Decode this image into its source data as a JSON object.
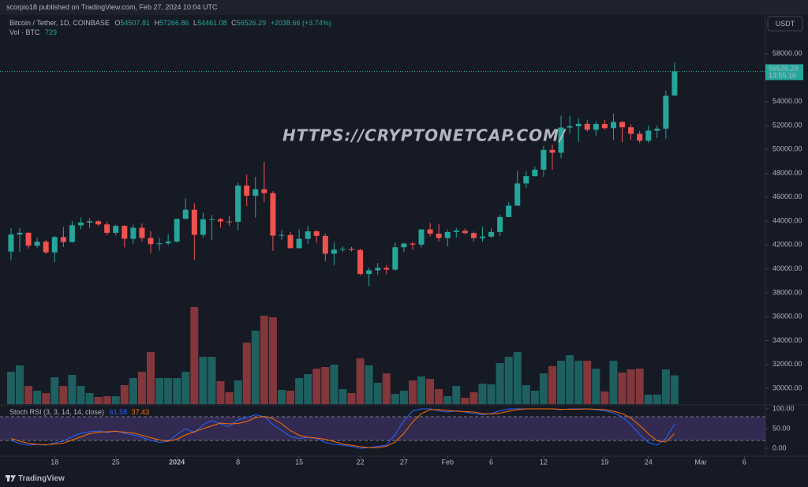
{
  "header": {
    "publisher": "scorpio18 published on TradingView.com, Feb 27, 2024 10:04 UTC"
  },
  "chart_data": {
    "type": "candlestick",
    "title": "Bitcoin / Tether, 1D, COINBASE",
    "ohlc_labels": [
      "O",
      "H",
      "L",
      "C"
    ],
    "change": "+2038.66 (+3.74%)",
    "currency": "USDT",
    "countdown": "13:55:16",
    "colors": {
      "up": "#26a69a",
      "down": "#ef5350"
    },
    "open": [
      41450,
      42880,
      43020,
      41940,
      42270,
      41380,
      42660,
      42250,
      43650,
      43880,
      43990,
      43720,
      43020,
      43600,
      42520,
      43440,
      42580,
      42070,
      42140,
      42280,
      44180,
      44950,
      42850,
      44150,
      44160,
      43970,
      43940,
      46970,
      46120,
      46660,
      46340,
      42780,
      42840,
      41730,
      42510,
      43140,
      42760,
      41270,
      41620,
      41660,
      41580,
      39570,
      39880,
      40080,
      39940,
      41810,
      42120,
      42030,
      43300,
      42940,
      42580,
      43080,
      43190,
      43000,
      42580,
      42700,
      43090,
      44340,
      45290,
      47150,
      47760,
      48300,
      49960,
      49720,
      51830,
      51940,
      52140,
      51640,
      52130,
      51780,
      52290,
      51850,
      51300,
      50730,
      51570,
      51730,
      54507.81
    ],
    "high": [
      43400,
      43430,
      43100,
      42600,
      42430,
      42760,
      43500,
      44000,
      44300,
      44250,
      44050,
      43950,
      43700,
      43650,
      43700,
      43800,
      43150,
      42600,
      42900,
      44200,
      45900,
      45500,
      44700,
      44500,
      44250,
      44450,
      47200,
      47900,
      47700,
      48970,
      46500,
      43250,
      43100,
      43300,
      43600,
      43280,
      42960,
      42200,
      41880,
      41850,
      41680,
      40100,
      40500,
      40300,
      42200,
      42200,
      42250,
      43310,
      43850,
      43750,
      43280,
      43420,
      43380,
      43120,
      43530,
      43400,
      44530,
      45600,
      48200,
      48170,
      48560,
      50300,
      50390,
      52820,
      52800,
      52580,
      52450,
      52350,
      52480,
      53000,
      52380,
      52100,
      51530,
      51980,
      52000,
      54900,
      57266.86
    ],
    "low": [
      40700,
      41420,
      41700,
      41730,
      41250,
      40570,
      41830,
      42200,
      43300,
      43430,
      43600,
      42800,
      42800,
      41800,
      42100,
      42300,
      41300,
      41530,
      41980,
      42200,
      44180,
      40750,
      42630,
      42400,
      43450,
      43600,
      43220,
      45250,
      44300,
      45600,
      41500,
      42440,
      41720,
      41700,
      42080,
      42200,
      40650,
      40300,
      41450,
      41450,
      39450,
      38550,
      39500,
      39550,
      39830,
      41400,
      41600,
      41800,
      42700,
      42300,
      41880,
      42600,
      42880,
      42280,
      42270,
      42580,
      42780,
      44330,
      45250,
      46800,
      47720,
      47700,
      48300,
      49250,
      51320,
      50620,
      51500,
      51160,
      51650,
      50800,
      50600,
      50800,
      50530,
      50550,
      50950,
      50900,
      54461.08
    ],
    "close": [
      42880,
      43020,
      41940,
      42270,
      41380,
      42660,
      42250,
      43650,
      43880,
      43990,
      43720,
      43020,
      43600,
      42520,
      43440,
      42580,
      42070,
      42140,
      42280,
      44180,
      44950,
      42850,
      44150,
      44160,
      43970,
      43940,
      46970,
      46120,
      46660,
      46340,
      42780,
      42840,
      41730,
      42510,
      43140,
      42760,
      41270,
      41620,
      41660,
      41580,
      39570,
      39880,
      40080,
      39940,
      41810,
      42120,
      42030,
      43300,
      42940,
      42580,
      43080,
      43190,
      43000,
      42580,
      42700,
      43090,
      44340,
      45290,
      47150,
      47760,
      48300,
      49960,
      49720,
      51830,
      51940,
      52140,
      51640,
      52130,
      51780,
      52290,
      51850,
      51300,
      50730,
      51570,
      51730,
      54480,
      56526.29
    ],
    "xlim": [
      -1.26,
      86.4
    ],
    "xticks": [
      {
        "value": 5,
        "label": "18"
      },
      {
        "value": 12,
        "label": "25"
      },
      {
        "value": 19,
        "label": "2024"
      },
      {
        "value": 26,
        "label": "8"
      },
      {
        "value": 33,
        "label": "15"
      },
      {
        "value": 40,
        "label": "22"
      },
      {
        "value": 45,
        "label": "27"
      },
      {
        "value": 50,
        "label": "Feb"
      },
      {
        "value": 55,
        "label": "6"
      },
      {
        "value": 61,
        "label": "12"
      },
      {
        "value": 68,
        "label": "19"
      },
      {
        "value": 73,
        "label": "24"
      },
      {
        "value": 79,
        "label": "Mar"
      },
      {
        "value": 84,
        "label": "6"
      }
    ],
    "ylim": [
      28680,
      61180
    ],
    "yticks": [
      {
        "value": 30000,
        "label": "30000.00"
      },
      {
        "value": 32000,
        "label": "32000.00"
      },
      {
        "value": 34000,
        "label": "34000.00"
      },
      {
        "value": 36000,
        "label": "36000.00"
      },
      {
        "value": 38000,
        "label": "38000.00"
      },
      {
        "value": 40000,
        "label": "40000.00"
      },
      {
        "value": 42000,
        "label": "42000.00"
      },
      {
        "value": 44000,
        "label": "44000.00"
      },
      {
        "value": 46000,
        "label": "46000.00"
      },
      {
        "value": 48000,
        "label": "48000.00"
      },
      {
        "value": 50000,
        "label": "50000.00"
      },
      {
        "value": 52000,
        "label": "52000.00"
      },
      {
        "value": 54000,
        "label": "54000.00"
      },
      {
        "value": 56000,
        "label": "56000.00"
      },
      {
        "value": 58000,
        "label": "58000.00"
      }
    ],
    "volume": {
      "name": "Vol · BTC",
      "values": [
        820,
        980,
        460,
        340,
        280,
        680,
        460,
        740,
        460,
        280,
        180,
        200,
        200,
        480,
        660,
        820,
        1320,
        660,
        660,
        660,
        820,
        2460,
        1200,
        1200,
        580,
        300,
        600,
        1560,
        1860,
        2240,
        2200,
        360,
        340,
        660,
        760,
        900,
        940,
        1000,
        380,
        280,
        1160,
        980,
        540,
        780,
        260,
        340,
        600,
        700,
        640,
        380,
        200,
        460,
        160,
        300,
        520,
        500,
        1040,
        1200,
        1320,
        480,
        340,
        780,
        960,
        1100,
        1240,
        1100,
        1100,
        900,
        320,
        1100,
        800,
        880,
        900,
        240,
        240,
        880,
        729
      ]
    },
    "stoch_rsi": {
      "title": "Stoch RSI (3, 3, 14, 14, close)",
      "ylim": [
        -18,
        110
      ],
      "yticks": [
        {
          "value": 100,
          "label": "100.00"
        },
        {
          "value": 50,
          "label": "50.00"
        },
        {
          "value": 0,
          "label": "0.00"
        }
      ],
      "bands": [
        20,
        80
      ],
      "series": [
        {
          "color": "#2962ff",
          "values": [
            20,
            12,
            8,
            10,
            8,
            14,
            18,
            30,
            38,
            42,
            44,
            40,
            44,
            38,
            34,
            28,
            20,
            15,
            18,
            35,
            50,
            40,
            60,
            70,
            62,
            55,
            72,
            78,
            85,
            80,
            60,
            45,
            30,
            25,
            28,
            25,
            15,
            10,
            8,
            5,
            0,
            2,
            5,
            8,
            35,
            70,
            95,
            100,
            100,
            95,
            92,
            95,
            92,
            88,
            85,
            88,
            95,
            100,
            100,
            100,
            100,
            100,
            100,
            98,
            100,
            100,
            100,
            98,
            95,
            90,
            80,
            60,
            35,
            15,
            8,
            25,
            61.58
          ]
        },
        {
          "color": "#ff6d00",
          "values": [
            25,
            18,
            13,
            10,
            9,
            11,
            13,
            21,
            29,
            37,
            41,
            42,
            43,
            41,
            39,
            33,
            27,
            21,
            18,
            23,
            34,
            42,
            50,
            57,
            64,
            62,
            63,
            68,
            78,
            81,
            75,
            62,
            45,
            33,
            28,
            26,
            23,
            17,
            11,
            8,
            4,
            2,
            2,
            5,
            16,
            38,
            67,
            88,
            98,
            98,
            96,
            94,
            93,
            92,
            88,
            87,
            89,
            94,
            98,
            100,
            100,
            100,
            100,
            99,
            99,
            99,
            100,
            99,
            98,
            94,
            88,
            77,
            58,
            37,
            19,
            16,
            37.43
          ]
        }
      ]
    }
  },
  "watermark": "HTTPS://CRYPTONETCAP.COM/",
  "footer": {
    "brand": "TradingView"
  }
}
